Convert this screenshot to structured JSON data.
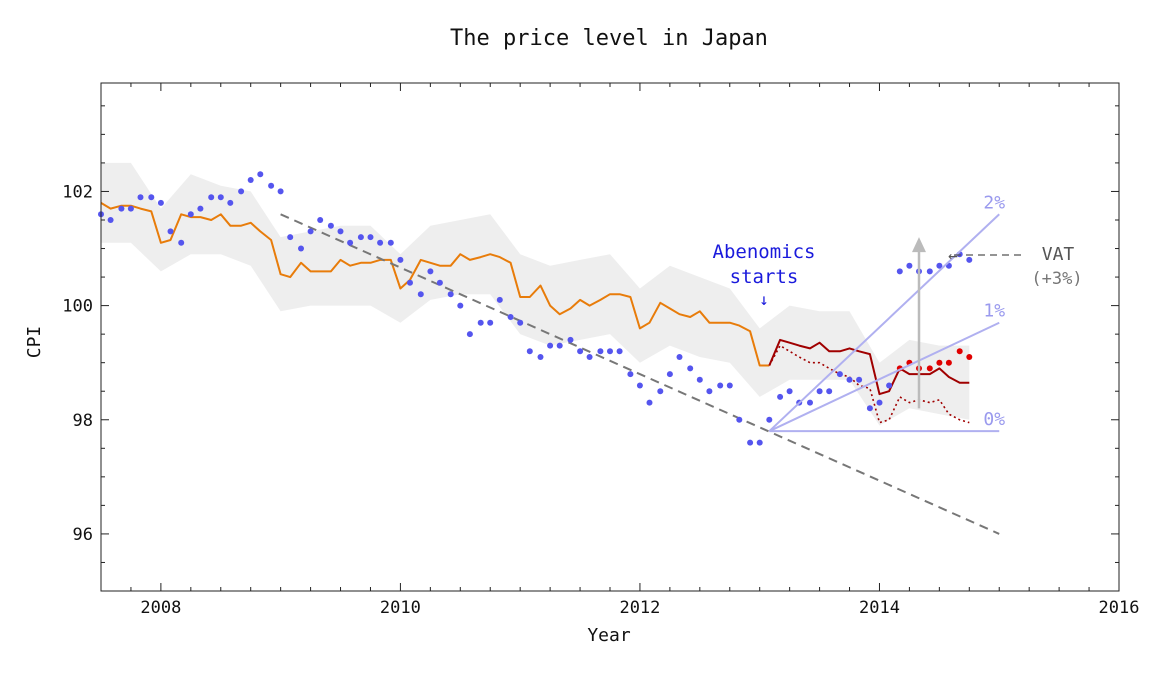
{
  "chart_data": {
    "type": "scatter",
    "title": "The price level in Japan",
    "xlabel": "Year",
    "ylabel": "CPI",
    "xlim": [
      2007.5,
      2016.0
    ],
    "ylim": [
      95.0,
      103.9
    ],
    "x_ticks": [
      "2008",
      "2010",
      "2012",
      "2014",
      "2016"
    ],
    "y_ticks": [
      "96",
      "98",
      "100",
      "102"
    ],
    "grid": false,
    "legend": "none",
    "colors": {
      "observed_points": "#5555ee",
      "post_vat_points": "#e00000",
      "orange_line": "#e87c0a",
      "red_line": "#a00000",
      "trend_dash": "#777777",
      "band": "#eeeeee",
      "scenario_lines": "#b0b0f0",
      "vat_arrow": "#bbbbbb"
    },
    "series": [
      {
        "kind": "points",
        "x": [
          2007.5,
          2007.58,
          2007.67,
          2007.75,
          2007.83,
          2007.92,
          2008.0,
          2008.08,
          2008.17,
          2008.25,
          2008.33,
          2008.42,
          2008.5,
          2008.58,
          2008.67,
          2008.75,
          2008.83,
          2008.92,
          2009.0,
          2009.08,
          2009.17,
          2009.25,
          2009.33,
          2009.42,
          2009.5,
          2009.58,
          2009.67,
          2009.75,
          2009.83,
          2009.92,
          2010.0,
          2010.08,
          2010.17,
          2010.25,
          2010.33,
          2010.42,
          2010.5,
          2010.58,
          2010.67,
          2010.75,
          2010.83,
          2010.92,
          2011.0,
          2011.08,
          2011.17,
          2011.25,
          2011.33,
          2011.42,
          2011.5,
          2011.58,
          2011.67,
          2011.75,
          2011.83,
          2011.92,
          2012.0,
          2012.08,
          2012.17,
          2012.25,
          2012.33,
          2012.42,
          2012.5,
          2012.58,
          2012.67,
          2012.75,
          2012.83,
          2012.92,
          2013.0,
          2013.08,
          2013.17,
          2013.25,
          2013.33,
          2013.42,
          2013.5,
          2013.58,
          2013.67,
          2013.75,
          2013.83,
          2013.92,
          2014.0,
          2014.08,
          2014.17,
          2014.25,
          2014.33,
          2014.42,
          2014.5,
          2014.58,
          2014.67,
          2014.75
        ],
        "y": [
          101.6,
          101.5,
          101.7,
          101.7,
          101.9,
          101.9,
          101.8,
          101.3,
          101.1,
          101.6,
          101.7,
          101.9,
          101.9,
          101.8,
          102.0,
          102.2,
          102.3,
          102.1,
          102.0,
          101.2,
          101.0,
          101.3,
          101.5,
          101.4,
          101.3,
          101.1,
          101.2,
          101.2,
          101.1,
          101.1,
          100.8,
          100.4,
          100.2,
          100.6,
          100.4,
          100.2,
          100.0,
          99.5,
          99.7,
          99.7,
          100.1,
          99.8,
          99.7,
          99.2,
          99.1,
          99.3,
          99.3,
          99.4,
          99.2,
          99.1,
          99.2,
          99.2,
          99.2,
          98.8,
          98.6,
          98.3,
          98.5,
          98.8,
          99.1,
          98.9,
          98.7,
          98.5,
          98.6,
          98.6,
          98.0,
          97.6,
          97.6,
          98.0,
          98.4,
          98.5,
          98.3,
          98.3,
          98.5,
          98.5,
          98.8,
          98.7,
          98.7,
          98.2,
          98.3,
          98.6,
          100.6,
          100.7,
          100.6,
          100.6,
          100.7,
          100.7,
          100.9,
          100.8
        ]
      },
      {
        "kind": "points",
        "x": [
          2014.17,
          2014.25,
          2014.33,
          2014.42,
          2014.5,
          2014.58,
          2014.67,
          2014.75
        ],
        "y": [
          98.9,
          99.0,
          98.9,
          98.9,
          99.0,
          99.0,
          99.2,
          99.1
        ]
      },
      {
        "kind": "line",
        "x": [
          2007.5,
          2007.58,
          2007.67,
          2007.75,
          2007.83,
          2007.92,
          2008.0,
          2008.08,
          2008.17,
          2008.25,
          2008.33,
          2008.42,
          2008.5,
          2008.58,
          2008.67,
          2008.75,
          2008.83,
          2008.92,
          2009.0,
          2009.08,
          2009.17,
          2009.25,
          2009.33,
          2009.42,
          2009.5,
          2009.58,
          2009.67,
          2009.75,
          2009.83,
          2009.92,
          2010.0,
          2010.08,
          2010.17,
          2010.25,
          2010.33,
          2010.42,
          2010.5,
          2010.58,
          2010.67,
          2010.75,
          2010.83,
          2010.92,
          2011.0,
          2011.08,
          2011.17,
          2011.25,
          2011.33,
          2011.42,
          2011.5,
          2011.58,
          2011.67,
          2011.75,
          2011.83,
          2011.92,
          2012.0,
          2012.08,
          2012.17,
          2012.25,
          2012.33,
          2012.42,
          2012.5,
          2012.58,
          2012.67,
          2012.75,
          2012.83,
          2012.92,
          2013.0,
          2013.08
        ],
        "y": [
          101.8,
          101.7,
          101.75,
          101.75,
          101.7,
          101.65,
          101.1,
          101.15,
          101.6,
          101.55,
          101.55,
          101.5,
          101.6,
          101.4,
          101.4,
          101.45,
          101.3,
          101.15,
          100.55,
          100.5,
          100.75,
          100.6,
          100.6,
          100.6,
          100.8,
          100.7,
          100.75,
          100.75,
          100.8,
          100.8,
          100.3,
          100.45,
          100.8,
          100.75,
          100.7,
          100.7,
          100.9,
          100.8,
          100.85,
          100.9,
          100.85,
          100.75,
          100.15,
          100.15,
          100.35,
          100.0,
          99.85,
          99.95,
          100.1,
          100.0,
          100.1,
          100.2,
          100.2,
          100.15,
          99.6,
          99.7,
          100.05,
          99.95,
          99.85,
          99.8,
          99.9,
          99.7,
          99.7,
          99.7,
          99.65,
          99.55,
          98.95,
          98.95
        ]
      },
      {
        "kind": "line",
        "x": [
          2013.08,
          2013.17,
          2013.25,
          2013.33,
          2013.42,
          2013.5,
          2013.58,
          2013.67,
          2013.75,
          2013.83,
          2013.92,
          2014.0,
          2014.08,
          2014.17,
          2014.25,
          2014.33,
          2014.42,
          2014.5,
          2014.58,
          2014.67,
          2014.75
        ],
        "y": [
          98.95,
          99.4,
          99.35,
          99.3,
          99.25,
          99.35,
          99.2,
          99.2,
          99.25,
          99.2,
          99.15,
          98.45,
          98.5,
          98.9,
          98.8,
          98.8,
          98.8,
          98.9,
          98.75,
          98.65,
          98.65
        ]
      },
      {
        "kind": "dotted",
        "x": [
          2013.08,
          2013.17,
          2013.25,
          2013.33,
          2013.42,
          2013.5,
          2013.58,
          2013.67,
          2013.75,
          2013.83,
          2013.92,
          2014.0,
          2014.08,
          2014.17,
          2014.25,
          2014.33,
          2014.42,
          2014.5,
          2014.58,
          2014.67,
          2014.75
        ],
        "y": [
          98.95,
          99.3,
          99.2,
          99.1,
          99.0,
          99.0,
          98.9,
          98.8,
          98.75,
          98.6,
          98.55,
          97.95,
          98.0,
          98.4,
          98.3,
          98.35,
          98.3,
          98.35,
          98.1,
          98.0,
          97.95
        ]
      },
      {
        "kind": "band",
        "x": [
          2007.5,
          2007.75,
          2008.0,
          2008.25,
          2008.5,
          2008.75,
          2009.0,
          2009.25,
          2009.5,
          2009.75,
          2010.0,
          2010.25,
          2010.5,
          2010.75,
          2011.0,
          2011.25,
          2011.5,
          2011.75,
          2012.0,
          2012.25,
          2012.5,
          2012.75,
          2013.0,
          2013.25,
          2013.5,
          2013.75,
          2014.0,
          2014.25,
          2014.5,
          2014.75
        ],
        "y_low": [
          101.1,
          101.1,
          100.6,
          100.9,
          100.9,
          100.7,
          99.9,
          100.0,
          100.0,
          100.0,
          99.7,
          100.1,
          100.2,
          100.2,
          99.5,
          99.3,
          99.4,
          99.5,
          99.0,
          99.3,
          99.1,
          99.0,
          98.4,
          98.7,
          98.7,
          98.7,
          97.9,
          98.2,
          98.1,
          98.0
        ],
        "y_high": [
          102.5,
          102.5,
          101.7,
          102.3,
          102.1,
          102.0,
          101.2,
          101.3,
          101.4,
          101.4,
          100.9,
          101.4,
          101.5,
          101.6,
          100.9,
          100.7,
          100.8,
          100.9,
          100.3,
          100.7,
          100.5,
          100.3,
          99.6,
          100.0,
          99.9,
          99.9,
          99.0,
          99.4,
          99.3,
          99.3
        ]
      },
      {
        "kind": "dashed",
        "x": [
          2009.0,
          2015.0
        ],
        "y": [
          101.6,
          96.0
        ]
      }
    ],
    "scenarios": [
      {
        "name": "2%",
        "from": [
          2013.08,
          97.8
        ],
        "to": [
          2015.0,
          101.6
        ]
      },
      {
        "name": "1%",
        "from": [
          2013.08,
          97.8
        ],
        "to": [
          2015.0,
          99.7
        ]
      },
      {
        "name": "0%",
        "from": [
          2013.08,
          97.8
        ],
        "to": [
          2015.0,
          97.8
        ]
      }
    ],
    "vat_arrow": {
      "x": 2014.33,
      "from": 98.2,
      "to": 101.2
    },
    "annotations": {
      "abenomics_line1": "Abenomics",
      "abenomics_line2": "starts",
      "abenomics_arrow": "↓",
      "vat_arrow_left": "←",
      "vat_label": "VAT",
      "vat_detail": "(+3%)"
    }
  }
}
